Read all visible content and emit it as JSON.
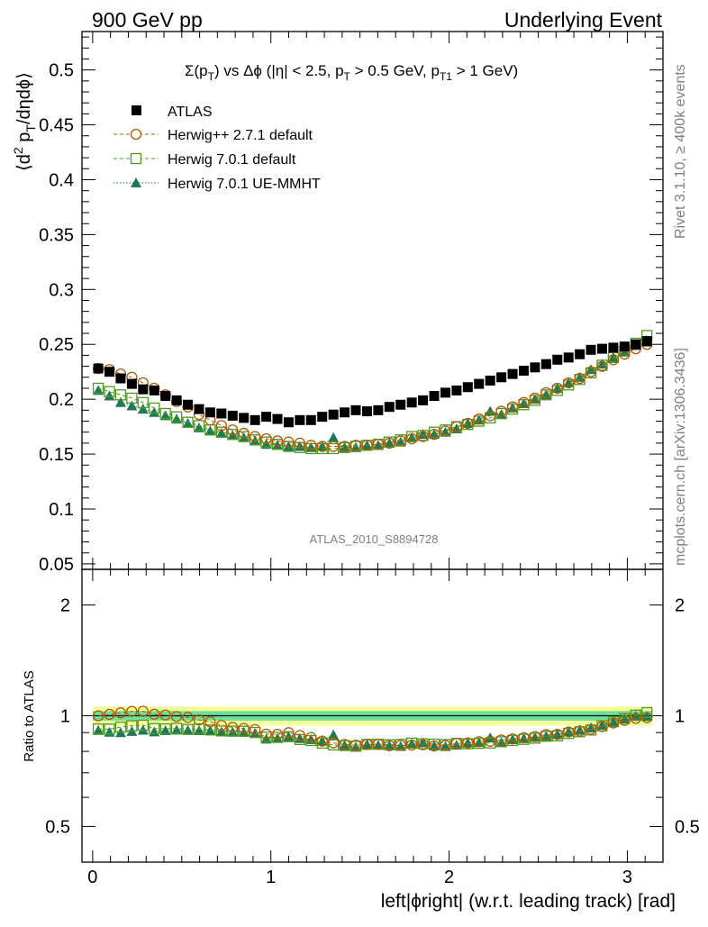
{
  "header": {
    "left": "900 GeV pp",
    "right": "Underlying Event"
  },
  "side_labels": {
    "rivet": "Rivet 3.1.10, ≥ 400k events",
    "mcplots": "mcplots.cern.ch [arXiv:1306.3436]"
  },
  "plot_title": {
    "prefix": "Σ(p",
    "sub_t": "T",
    "middle": ") vs Δϕ (|η| < 2.5, p",
    "middle2": " > 0.5 GeV, p",
    "sub_t1": "T1",
    "suffix": " > 1 GeV)"
  },
  "watermark": "ATLAS_2010_S8894728",
  "colors": {
    "atlas": "#000000",
    "herwigpp": "#b35a00",
    "herwig7_default": "#4f9b1f",
    "herwig7_mmht": "#1e7a55",
    "band_inner": "#6fe09a",
    "band_outer": "#f7ff9a"
  },
  "chart_data": {
    "type": "scatter",
    "title": "Σ(pT) vs Δϕ (|η| < 2.5, pT > 0.5 GeV, pT1 > 1 GeV)",
    "xlabel": "left|ϕright| (w.r.t. leading track) [rad]",
    "ylabel": "⟨d² pT/dηdϕ⟩",
    "ratio_ylabel": "Ratio to ATLAS",
    "xlim": [
      -0.06,
      3.2
    ],
    "ylim": [
      0.045,
      0.535
    ],
    "ratio_ylim": [
      0.4,
      2.5
    ],
    "x_ticks": [
      0,
      1,
      2,
      3
    ],
    "y_ticks": [
      0.05,
      0.1,
      0.15,
      0.2,
      0.25,
      0.3,
      0.35,
      0.4,
      0.45,
      0.5
    ],
    "y_tick_labels": [
      "0.05",
      "0.1",
      "0.15",
      "0.2",
      "0.25",
      "0.3",
      "0.35",
      "0.4",
      "0.45",
      "0.5"
    ],
    "ratio_ticks": [
      0.5,
      1,
      2
    ],
    "ratio_tick_labels": [
      "0.5",
      "1",
      "2"
    ],
    "x_tick_labels": [
      "0",
      "1",
      "2",
      "3"
    ],
    "x": [
      0.0314,
      0.0942,
      0.157,
      0.2199,
      0.2827,
      0.3456,
      0.4084,
      0.4712,
      0.5341,
      0.5969,
      0.6597,
      0.7226,
      0.7854,
      0.8482,
      0.9111,
      0.9739,
      1.0367,
      1.0996,
      1.1624,
      1.2252,
      1.2881,
      1.3509,
      1.4137,
      1.4765,
      1.5394,
      1.6022,
      1.665,
      1.7279,
      1.7907,
      1.8535,
      1.9164,
      1.9792,
      2.042,
      2.1049,
      2.1677,
      2.2305,
      2.2934,
      2.3562,
      2.419,
      2.4819,
      2.5447,
      2.6075,
      2.6704,
      2.7332,
      2.796,
      2.8588,
      2.9217,
      2.9845,
      3.0473,
      3.1102
    ],
    "legend": [
      "ATLAS",
      "Herwig++ 2.7.1 default",
      "Herwig 7.0.1 default",
      "Herwig 7.0.1 UE-MMHT"
    ],
    "series": [
      {
        "name": "ATLAS",
        "marker": "square-filled",
        "line": "none",
        "values": [
          0.228,
          0.225,
          0.219,
          0.214,
          0.209,
          0.208,
          0.203,
          0.199,
          0.195,
          0.191,
          0.188,
          0.187,
          0.185,
          0.183,
          0.181,
          0.184,
          0.182,
          0.179,
          0.181,
          0.181,
          0.184,
          0.186,
          0.188,
          0.19,
          0.189,
          0.19,
          0.193,
          0.195,
          0.197,
          0.199,
          0.203,
          0.206,
          0.208,
          0.211,
          0.214,
          0.217,
          0.22,
          0.223,
          0.226,
          0.229,
          0.232,
          0.236,
          0.238,
          0.241,
          0.245,
          0.246,
          0.247,
          0.248,
          0.25,
          0.253
        ]
      },
      {
        "name": "Herwig++ 2.7.1 default",
        "marker": "circle-open",
        "line": "dashed",
        "values": [
          0.228,
          0.227,
          0.223,
          0.22,
          0.215,
          0.21,
          0.204,
          0.198,
          0.193,
          0.186,
          0.181,
          0.176,
          0.172,
          0.169,
          0.166,
          0.164,
          0.162,
          0.161,
          0.16,
          0.158,
          0.157,
          0.157,
          0.157,
          0.158,
          0.158,
          0.159,
          0.16,
          0.162,
          0.164,
          0.166,
          0.168,
          0.171,
          0.175,
          0.178,
          0.182,
          0.185,
          0.189,
          0.193,
          0.197,
          0.201,
          0.206,
          0.21,
          0.215,
          0.219,
          0.225,
          0.23,
          0.236,
          0.241,
          0.246,
          0.25
        ]
      },
      {
        "name": "Herwig 7.0.1 default",
        "marker": "square-open",
        "line": "dashed",
        "values": [
          0.21,
          0.207,
          0.204,
          0.201,
          0.197,
          0.192,
          0.187,
          0.184,
          0.179,
          0.176,
          0.172,
          0.17,
          0.168,
          0.166,
          0.163,
          0.161,
          0.159,
          0.157,
          0.156,
          0.155,
          0.155,
          0.155,
          0.156,
          0.157,
          0.158,
          0.159,
          0.161,
          0.163,
          0.166,
          0.167,
          0.17,
          0.172,
          0.175,
          0.177,
          0.18,
          0.183,
          0.187,
          0.191,
          0.195,
          0.199,
          0.204,
          0.208,
          0.213,
          0.218,
          0.224,
          0.231,
          0.238,
          0.244,
          0.251,
          0.258
        ]
      },
      {
        "name": "Herwig 7.0.1 UE-MMHT",
        "marker": "triangle-filled",
        "line": "dotted",
        "values": [
          0.208,
          0.203,
          0.197,
          0.194,
          0.191,
          0.188,
          0.185,
          0.182,
          0.178,
          0.174,
          0.171,
          0.169,
          0.167,
          0.165,
          0.162,
          0.159,
          0.158,
          0.157,
          0.157,
          0.156,
          0.157,
          0.165,
          0.156,
          0.156,
          0.158,
          0.158,
          0.16,
          0.161,
          0.165,
          0.168,
          0.168,
          0.17,
          0.173,
          0.178,
          0.181,
          0.189,
          0.186,
          0.192,
          0.196,
          0.2,
          0.204,
          0.21,
          0.215,
          0.22,
          0.227,
          0.232,
          0.238,
          0.243,
          0.249,
          0.252
        ]
      }
    ],
    "ratio_band": {
      "inner": [
        0.97,
        1.03
      ],
      "outer": [
        0.94,
        1.06
      ]
    }
  }
}
